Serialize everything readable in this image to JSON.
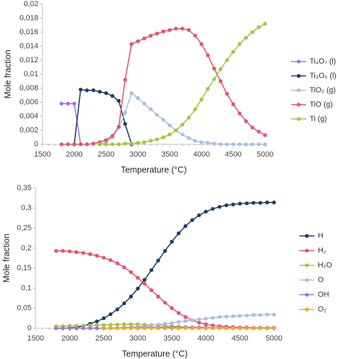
{
  "chart_data": [
    {
      "type": "line",
      "x_label": "Temperature (°C)",
      "y_label": "Mole fraction",
      "legend": "right",
      "x": [
        1800,
        1900,
        2000,
        2100,
        2200,
        2300,
        2400,
        2500,
        2600,
        2700,
        2800,
        2900,
        3000,
        3100,
        3200,
        3300,
        3400,
        3500,
        3600,
        3700,
        3800,
        3900,
        4000,
        4100,
        4200,
        4300,
        4400,
        4500,
        4600,
        4700,
        4800,
        4900,
        5000
      ],
      "xlim": [
        1500,
        5000
      ],
      "xticks": [
        1500,
        2000,
        2500,
        3000,
        3500,
        4000,
        4500,
        5000
      ],
      "ylim": [
        0,
        0.02
      ],
      "yticks": [
        0,
        {
          "value": 0.002,
          "label": "0,002"
        },
        {
          "value": 0.004,
          "label": "0,004"
        },
        {
          "value": 0.006,
          "label": "0,006"
        },
        {
          "value": 0.008,
          "label": "0,008"
        },
        {
          "value": 0.01,
          "label": "0,01"
        },
        {
          "value": 0.012,
          "label": "0,012"
        },
        {
          "value": 0.014,
          "label": "0,014"
        },
        {
          "value": 0.016,
          "label": "0,016"
        },
        {
          "value": 0.018,
          "label": "0,018"
        },
        {
          "value": 0.02,
          "label": "0,02"
        }
      ],
      "series": [
        {
          "name": "Ti₄O₇ (l)",
          "color": "#a66ee6",
          "values": [
            0.0058,
            0.0058,
            0.0058,
            0,
            null,
            null,
            null,
            null,
            null,
            null,
            null,
            null,
            null,
            null,
            null,
            null,
            null,
            null,
            null,
            null,
            null,
            null,
            null,
            null,
            null,
            null,
            null,
            null,
            null,
            null,
            null,
            null,
            null
          ]
        },
        {
          "name": "Ti₃O₅ (l)",
          "color": "#1d3d66",
          "values": [
            null,
            null,
            0,
            0.0078,
            0.0077,
            0.0077,
            0.0075,
            0.0073,
            0.0069,
            0.0062,
            0.0029,
            0,
            null,
            null,
            null,
            null,
            null,
            null,
            null,
            null,
            null,
            null,
            null,
            null,
            null,
            null,
            null,
            null,
            null,
            null,
            null,
            null,
            null
          ]
        },
        {
          "name": "TiO₂ (g)",
          "color": "#a9bfe0",
          "values": [
            null,
            null,
            null,
            null,
            null,
            null,
            0,
            0.0003,
            0.001,
            0.0024,
            0.0045,
            0.0073,
            0.0066,
            0.0058,
            0.005,
            0.0042,
            0.0035,
            0.0027,
            0.002,
            0.0014,
            0.0009,
            0.0005,
            0.0003,
            0.0002,
            0.0001,
            0,
            0,
            0,
            0,
            0,
            0,
            0,
            0
          ]
        },
        {
          "name": "TiO (g)",
          "color": "#ea5168",
          "values": [
            0,
            0,
            0,
            0,
            0,
            0.0001,
            0.0003,
            0.0006,
            0.0012,
            0.0025,
            0.0092,
            0.0143,
            0.0147,
            0.0151,
            0.0155,
            0.0158,
            0.0161,
            0.0163,
            0.0165,
            0.0165,
            0.0163,
            0.0155,
            0.0143,
            0.0127,
            0.0108,
            0.009,
            0.0072,
            0.0057,
            0.0044,
            0.0033,
            0.0024,
            0.0018,
            0.0013
          ]
        },
        {
          "name": "Ti (g)",
          "color": "#a3c63f",
          "values": [
            null,
            null,
            null,
            null,
            null,
            null,
            0,
            0,
            0,
            0,
            0.0001,
            0.0001,
            0.0002,
            0.0003,
            0.0005,
            0.0007,
            0.001,
            0.0014,
            0.002,
            0.0028,
            0.0038,
            0.005,
            0.0064,
            0.0079,
            0.0093,
            0.0107,
            0.012,
            0.0132,
            0.0143,
            0.0152,
            0.016,
            0.0167,
            0.0172
          ]
        }
      ]
    },
    {
      "type": "line",
      "x_label": "Temperature (°C)",
      "y_label": "Mole fraction",
      "legend": "right",
      "x": [
        1800,
        1900,
        2000,
        2100,
        2200,
        2300,
        2400,
        2500,
        2600,
        2700,
        2800,
        2900,
        3000,
        3100,
        3200,
        3300,
        3400,
        3500,
        3600,
        3700,
        3800,
        3900,
        4000,
        4100,
        4200,
        4300,
        4400,
        4500,
        4600,
        4700,
        4800,
        4900,
        5000
      ],
      "xlim": [
        1500,
        5000
      ],
      "xticks": [
        1500,
        2000,
        2500,
        3000,
        3500,
        4000,
        4500,
        5000
      ],
      "ylim": [
        0,
        0.35
      ],
      "yticks": [
        0,
        {
          "value": 0.05,
          "label": "0,05"
        },
        {
          "value": 0.1,
          "label": "0,1"
        },
        {
          "value": 0.15,
          "label": "0,15"
        },
        {
          "value": 0.2,
          "label": "0,2"
        },
        {
          "value": 0.25,
          "label": "0,25"
        },
        {
          "value": 0.3,
          "label": "0,3"
        },
        {
          "value": 0.35,
          "label": "0,35"
        }
      ],
      "series": [
        {
          "name": "H",
          "color": "#1d3d66",
          "values": [
            0,
            0,
            0.001,
            0.002,
            0.006,
            0.011,
            0.017,
            0.025,
            0.035,
            0.047,
            0.062,
            0.079,
            0.099,
            0.121,
            0.145,
            0.169,
            0.193,
            0.216,
            0.237,
            0.255,
            0.27,
            0.282,
            0.291,
            0.298,
            0.303,
            0.307,
            0.309,
            0.311,
            0.312,
            0.313,
            0.313,
            0.314,
            0.314
          ]
        },
        {
          "name": "H₂",
          "color": "#ea5168",
          "values": [
            0.193,
            0.193,
            0.192,
            0.19,
            0.188,
            0.185,
            0.181,
            0.176,
            0.17,
            0.162,
            0.152,
            0.14,
            0.126,
            0.111,
            0.095,
            0.079,
            0.064,
            0.05,
            0.038,
            0.028,
            0.02,
            0.014,
            0.01,
            0.007,
            0.005,
            0.004,
            0.003,
            0.002,
            0.002,
            0.001,
            0.001,
            0.001,
            0.001
          ]
        },
        {
          "name": "H₂O",
          "color": "#a3c63f",
          "values": [
            0.005,
            0.005,
            0.006,
            0.006,
            0.007,
            0.007,
            0.008,
            0.008,
            0.009,
            0.009,
            0.01,
            0.01,
            0.01,
            0.009,
            0.008,
            0.007,
            0.006,
            0.005,
            0.004,
            0.003,
            0.002,
            0.002,
            0.001,
            0.001,
            0.001,
            0,
            0,
            0,
            0,
            0,
            0,
            0,
            0
          ]
        },
        {
          "name": "O",
          "color": "#a9bfe0",
          "values": [
            0,
            0,
            0,
            0,
            0,
            0,
            0,
            0,
            0.001,
            0.001,
            0.002,
            0.003,
            0.004,
            0.005,
            0.007,
            0.009,
            0.011,
            0.013,
            0.016,
            0.018,
            0.02,
            0.022,
            0.024,
            0.026,
            0.028,
            0.029,
            0.03,
            0.031,
            0.032,
            0.033,
            0.033,
            0.034,
            0.034
          ]
        },
        {
          "name": "OH",
          "color": "#a66ee6",
          "values": [
            0,
            0,
            0,
            0,
            0,
            0,
            0,
            0,
            0,
            0,
            0.001,
            0.001,
            0.001,
            0.002,
            0.002,
            0.002,
            0.002,
            0.002,
            0.002,
            0.002,
            0.002,
            0.002,
            0.002,
            0.001,
            0.001,
            0.001,
            0.001,
            0.001,
            0.001,
            0.001,
            0.001,
            0.001,
            0.001
          ]
        },
        {
          "name": "O₂",
          "color": "#f5a623",
          "values": [
            null,
            null,
            null,
            null,
            null,
            null,
            null,
            0,
            0,
            0,
            0,
            0,
            0,
            0,
            0,
            0,
            0,
            0,
            0,
            0,
            0,
            0,
            0,
            0,
            0,
            0,
            0,
            0,
            0,
            0,
            0,
            0,
            0
          ]
        }
      ]
    }
  ]
}
